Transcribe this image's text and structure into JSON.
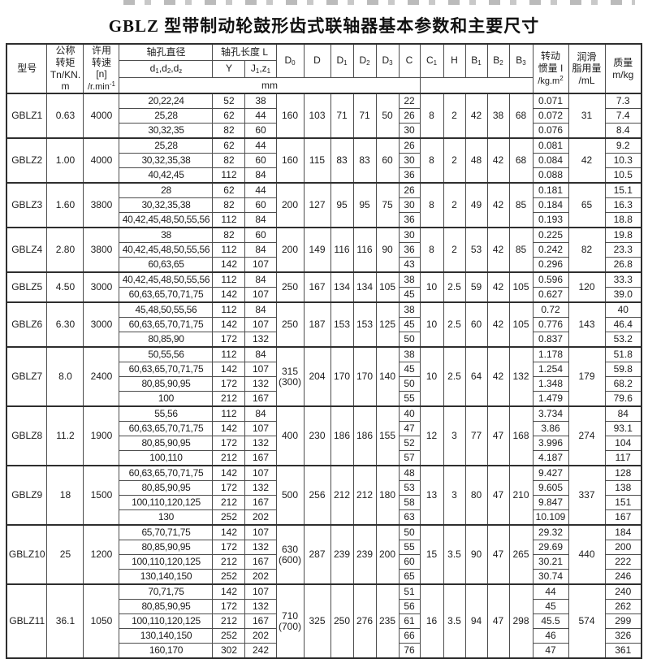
{
  "title": "GBLZ 型带制动轮鼓形齿式联轴器基本参数和主要尺寸",
  "header": {
    "model": "型号",
    "nominal_torque": "公称\n转矩\nTn/KN.\nm",
    "allow_speed": "许用\n转速\n[n]",
    "speed_unit": {
      "base": "/r.min",
      "sup": "-1"
    },
    "bore_dia": "轴孔直径",
    "bore_sym": [
      {
        "b": "d",
        "s": "1"
      },
      {
        "b": ",d",
        "s": "2"
      },
      {
        "b": ",d",
        "s": "z"
      }
    ],
    "bore_len": "轴孔长度 L",
    "y": "Y",
    "len_sym": [
      {
        "b": "J",
        "s": "1"
      },
      {
        "b": ",z",
        "s": "1"
      }
    ],
    "unit_mm": "mm",
    "dims": [
      {
        "b": "D",
        "s": "0"
      },
      {
        "b": "D",
        "s": ""
      },
      {
        "b": "D",
        "s": "1"
      },
      {
        "b": "D",
        "s": "2"
      },
      {
        "b": "D",
        "s": "3"
      },
      {
        "b": "C",
        "s": ""
      },
      {
        "b": "C",
        "s": "1"
      },
      {
        "b": "H",
        "s": ""
      },
      {
        "b": "B",
        "s": "1"
      },
      {
        "b": "B",
        "s": "2"
      },
      {
        "b": "B",
        "s": "3"
      }
    ],
    "inertia_cn": "转动\n惯量 I",
    "inertia_unit": {
      "base": "/kg.m",
      "sup": "2"
    },
    "grease": "润滑\n脂用量\n/mL",
    "mass": "质量\nm/kg"
  },
  "groups": [
    {
      "model": "GBLZ1",
      "torque": "0.63",
      "speed": "4000",
      "d0": "160",
      "dd": "103",
      "d1": "71",
      "d2": "71",
      "d3": "50",
      "c1": "8",
      "h": "2",
      "b1": "42",
      "b2": "38",
      "b3": "68",
      "grease": "31",
      "rows": [
        {
          "d": "20,22,24",
          "y": "52",
          "j": "38",
          "c": "22",
          "i": "0.071",
          "m": "7.3"
        },
        {
          "d": "25,28",
          "y": "62",
          "j": "44",
          "c": "26",
          "i": "0.072",
          "m": "7.4"
        },
        {
          "d": "30,32,35",
          "y": "82",
          "j": "60",
          "c": "30",
          "i": "0.076",
          "m": "8.4"
        }
      ]
    },
    {
      "model": "GBLZ2",
      "torque": "1.00",
      "speed": "4000",
      "d0": "160",
      "dd": "115",
      "d1": "83",
      "d2": "83",
      "d3": "60",
      "c1": "8",
      "h": "2",
      "b1": "48",
      "b2": "42",
      "b3": "68",
      "grease": "42",
      "rows": [
        {
          "d": "25,28",
          "y": "62",
          "j": "44",
          "c": "26",
          "i": "0.081",
          "m": "9.2"
        },
        {
          "d": "30,32,35,38",
          "y": "82",
          "j": "60",
          "c": "30",
          "i": "0.084",
          "m": "10.3"
        },
        {
          "d": "40,42,45",
          "y": "112",
          "j": "84",
          "c": "36",
          "i": "0.088",
          "m": "10.5"
        }
      ]
    },
    {
      "model": "GBLZ3",
      "torque": "1.60",
      "speed": "3800",
      "d0": "200",
      "dd": "127",
      "d1": "95",
      "d2": "95",
      "d3": "75",
      "c1": "8",
      "h": "2",
      "b1": "49",
      "b2": "42",
      "b3": "85",
      "grease": "65",
      "rows": [
        {
          "d": "28",
          "y": "62",
          "j": "44",
          "c": "26",
          "i": "0.181",
          "m": "15.1"
        },
        {
          "d": "30,32,35,38",
          "y": "82",
          "j": "60",
          "c": "30",
          "i": "0.184",
          "m": "16.3"
        },
        {
          "d": "40,42,45,48,50,55,56",
          "y": "112",
          "j": "84",
          "c": "36",
          "i": "0.193",
          "m": "18.8"
        }
      ]
    },
    {
      "model": "GBLZ4",
      "torque": "2.80",
      "speed": "3800",
      "d0": "200",
      "dd": "149",
      "d1": "116",
      "d2": "116",
      "d3": "90",
      "c1": "8",
      "h": "2",
      "b1": "53",
      "b2": "42",
      "b3": "85",
      "grease": "82",
      "rows": [
        {
          "d": "38",
          "y": "82",
          "j": "60",
          "c": "30",
          "i": "0.225",
          "m": "19.8"
        },
        {
          "d": "40,42,45,48,50,55,56",
          "y": "112",
          "j": "84",
          "c": "36",
          "i": "0.242",
          "m": "23.3"
        },
        {
          "d": "60,63,65",
          "y": "142",
          "j": "107",
          "c": "43",
          "i": "0.296",
          "m": "26.8"
        }
      ]
    },
    {
      "model": "GBLZ5",
      "torque": "4.50",
      "speed": "3000",
      "d0": "250",
      "dd": "167",
      "d1": "134",
      "d2": "134",
      "d3": "105",
      "c1": "10",
      "h": "2.5",
      "b1": "59",
      "b2": "42",
      "b3": "105",
      "grease": "120",
      "rows": [
        {
          "d": "40,42,45,48,50,55,56",
          "y": "112",
          "j": "84",
          "c": "38",
          "i": "0.596",
          "m": "33.3"
        },
        {
          "d": "60,63,65,70,71,75",
          "y": "142",
          "j": "107",
          "c": "45",
          "i": "0.627",
          "m": "39.0"
        }
      ]
    },
    {
      "model": "GBLZ6",
      "torque": "6.30",
      "speed": "3000",
      "d0": "250",
      "dd": "187",
      "d1": "153",
      "d2": "153",
      "d3": "125",
      "c1": "10",
      "h": "2.5",
      "b1": "60",
      "b2": "42",
      "b3": "105",
      "grease": "143",
      "rows": [
        {
          "d": "45,48,50,55,56",
          "y": "112",
          "j": "84",
          "c": "38",
          "i": "0.72",
          "m": "40"
        },
        {
          "d": "60,63,65,70,71,75",
          "y": "142",
          "j": "107",
          "c": "45",
          "i": "0.776",
          "m": "46.4"
        },
        {
          "d": "80,85,90",
          "y": "172",
          "j": "132",
          "c": "50",
          "i": "0.837",
          "m": "53.2"
        }
      ]
    },
    {
      "model": "GBLZ7",
      "torque": "8.0",
      "speed": "2400",
      "d0": "315\n(300)",
      "dd": "204",
      "d1": "170",
      "d2": "170",
      "d3": "140",
      "c1": "10",
      "h": "2.5",
      "b1": "64",
      "b2": "42",
      "b3": "132",
      "grease": "179",
      "rows": [
        {
          "d": "50,55,56",
          "y": "112",
          "j": "84",
          "c": "38",
          "i": "1.178",
          "m": "51.8"
        },
        {
          "d": "60,63,65,70,71,75",
          "y": "142",
          "j": "107",
          "c": "45",
          "i": "1.254",
          "m": "59.8"
        },
        {
          "d": "80,85,90,95",
          "y": "172",
          "j": "132",
          "c": "50",
          "i": "1.348",
          "m": "68.2"
        },
        {
          "d": "100",
          "y": "212",
          "j": "167",
          "c": "55",
          "i": "1.479",
          "m": "79.6"
        }
      ]
    },
    {
      "model": "GBLZ8",
      "torque": "11.2",
      "speed": "1900",
      "d0": "400",
      "dd": "230",
      "d1": "186",
      "d2": "186",
      "d3": "155",
      "c1": "12",
      "h": "3",
      "b1": "77",
      "b2": "47",
      "b3": "168",
      "grease": "274",
      "rows": [
        {
          "d": "55,56",
          "y": "112",
          "j": "84",
          "c": "40",
          "i": "3.734",
          "m": "84"
        },
        {
          "d": "60,63,65,70,71,75",
          "y": "142",
          "j": "107",
          "c": "47",
          "i": "3.86",
          "m": "93.1"
        },
        {
          "d": "80,85,90,95",
          "y": "172",
          "j": "132",
          "c": "52",
          "i": "3.996",
          "m": "104"
        },
        {
          "d": "100,110",
          "y": "212",
          "j": "167",
          "c": "57",
          "i": "4.187",
          "m": "117"
        }
      ]
    },
    {
      "model": "GBLZ9",
      "torque": "18",
      "speed": "1500",
      "d0": "500",
      "dd": "256",
      "d1": "212",
      "d2": "212",
      "d3": "180",
      "c1": "13",
      "h": "3",
      "b1": "80",
      "b2": "47",
      "b3": "210",
      "grease": "337",
      "rows": [
        {
          "d": "60,63,65,70,71,75",
          "y": "142",
          "j": "107",
          "c": "48",
          "i": "9.427",
          "m": "128"
        },
        {
          "d": "80,85,90,95",
          "y": "172",
          "j": "132",
          "c": "53",
          "i": "9.605",
          "m": "138"
        },
        {
          "d": "100,110,120,125",
          "y": "212",
          "j": "167",
          "c": "58",
          "i": "9.847",
          "m": "151"
        },
        {
          "d": "130",
          "y": "252",
          "j": "202",
          "c": "63",
          "i": "10.109",
          "m": "167"
        }
      ]
    },
    {
      "model": "GBLZ10",
      "torque": "25",
      "speed": "1200",
      "d0": "630\n(600)",
      "dd": "287",
      "d1": "239",
      "d2": "239",
      "d3": "200",
      "c1": "15",
      "h": "3.5",
      "b1": "90",
      "b2": "47",
      "b3": "265",
      "grease": "440",
      "rows": [
        {
          "d": "65,70,71,75",
          "y": "142",
          "j": "107",
          "c": "50",
          "i": "29.32",
          "m": "184"
        },
        {
          "d": "80,85,90,95",
          "y": "172",
          "j": "132",
          "c": "55",
          "i": "29.69",
          "m": "200"
        },
        {
          "d": "100,110,120,125",
          "y": "212",
          "j": "167",
          "c": "60",
          "i": "30.21",
          "m": "222"
        },
        {
          "d": "130,140,150",
          "y": "252",
          "j": "202",
          "c": "65",
          "i": "30.74",
          "m": "246"
        }
      ]
    },
    {
      "model": "GBLZ11",
      "torque": "36.1",
      "speed": "1050",
      "d0": "710\n(700)",
      "dd": "325",
      "d1": "250",
      "d2": "276",
      "d3": "235",
      "c1": "16",
      "h": "3.5",
      "b1": "94",
      "b2": "47",
      "b3": "298",
      "grease": "574",
      "rows": [
        {
          "d": "70,71,75",
          "y": "142",
          "j": "107",
          "c": "51",
          "i": "44",
          "m": "240"
        },
        {
          "d": "80,85,90,95",
          "y": "172",
          "j": "132",
          "c": "56",
          "i": "45",
          "m": "262"
        },
        {
          "d": "100,110,120,125",
          "y": "212",
          "j": "167",
          "c": "61",
          "i": "45.5",
          "m": "299"
        },
        {
          "d": "130,140,150",
          "y": "252",
          "j": "202",
          "c": "66",
          "i": "46",
          "m": "326"
        },
        {
          "d": "160,170",
          "y": "302",
          "j": "242",
          "c": "76",
          "i": "47",
          "m": "361"
        }
      ]
    }
  ]
}
